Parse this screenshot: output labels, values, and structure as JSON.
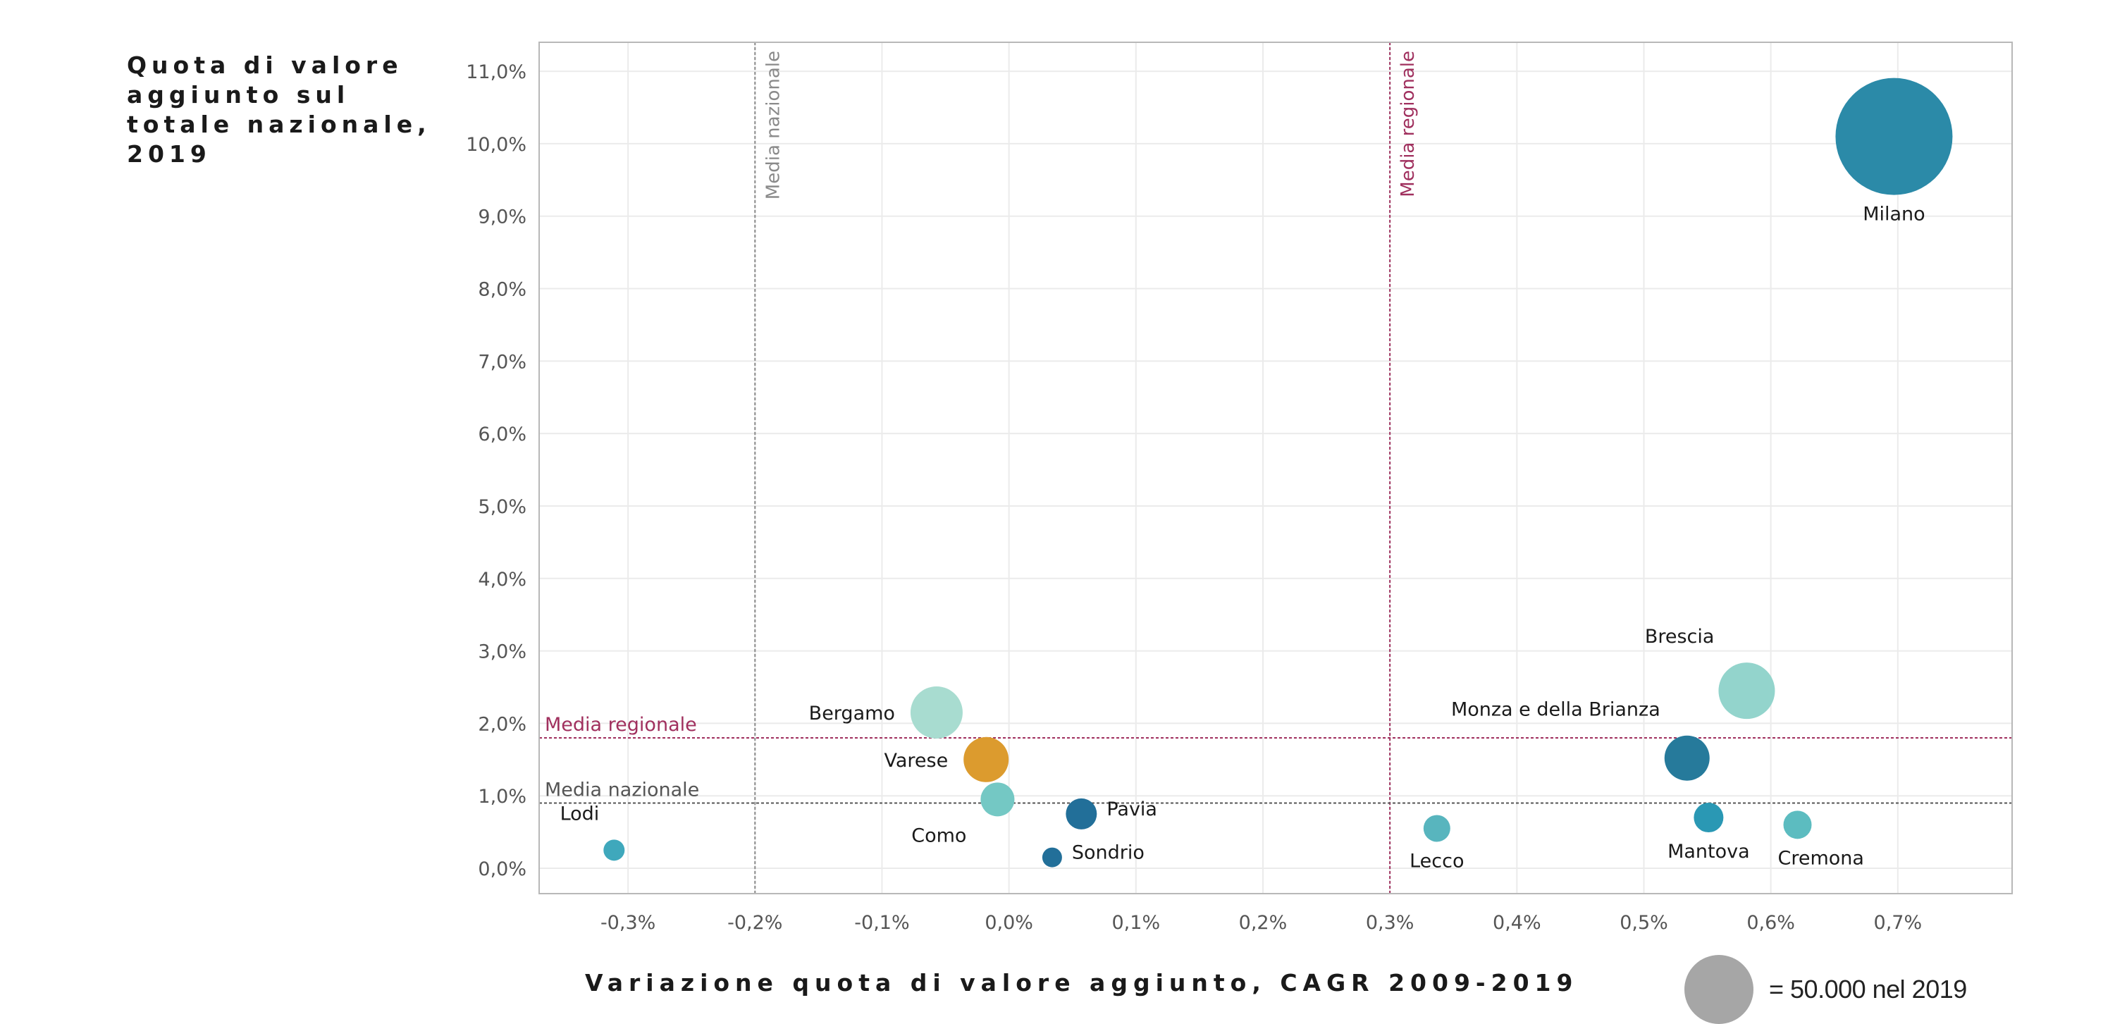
{
  "chart_data": {
    "type": "scatter",
    "xlabel": "Variazione quota di valore aggiunto, CAGR 2009-2019",
    "ylabel": "Quota di valore aggiunto sul totale nazionale, 2019",
    "xlim": [
      -0.37,
      0.79
    ],
    "ylim": [
      -0.35,
      11.4
    ],
    "x_ticks": [
      -0.3,
      -0.2,
      -0.1,
      0.0,
      0.1,
      0.2,
      0.3,
      0.4,
      0.5,
      0.6,
      0.7
    ],
    "x_tick_labels": [
      "-0,3%",
      "-0,2%",
      "-0,1%",
      "0,0%",
      "0,1%",
      "0,2%",
      "0,3%",
      "0,4%",
      "0,5%",
      "0,6%",
      "0,7%"
    ],
    "y_ticks": [
      0,
      1,
      2,
      3,
      4,
      5,
      6,
      7,
      8,
      9,
      10,
      11
    ],
    "y_tick_labels": [
      "0,0%",
      "1,0%",
      "2,0%",
      "3,0%",
      "4,0%",
      "5,0%",
      "6,0%",
      "7,0%",
      "8,0%",
      "9,0%",
      "10,0%",
      "11,0%"
    ],
    "grid": true,
    "size_legend": {
      "label": "= 50.000 nel 2019",
      "color": "#a6a6a6"
    },
    "reference_lines": [
      {
        "axis": "x",
        "value": -0.2,
        "label": "Media nazionale",
        "color": "#8a8a8a"
      },
      {
        "axis": "x",
        "value": 0.3,
        "label": "Media regionale",
        "color": "#a0305e"
      },
      {
        "axis": "y",
        "value": 1.8,
        "label": "Media regionale",
        "color": "#a0305e"
      },
      {
        "axis": "y",
        "value": 0.9,
        "label": "Media nazionale",
        "color": "#555555"
      }
    ],
    "points": [
      {
        "name": "Milano",
        "x": 0.697,
        "y": 10.1,
        "radius": 83,
        "color": "#2b8aa8",
        "label_pos": "below"
      },
      {
        "name": "Brescia",
        "x": 0.581,
        "y": 2.45,
        "radius": 40,
        "color": "#93d4cc",
        "label_pos": "above-left"
      },
      {
        "name": "Bergamo",
        "x": -0.057,
        "y": 2.15,
        "radius": 37,
        "color": "#a8dcd0",
        "label_pos": "left"
      },
      {
        "name": "Monza e della Brianza",
        "x": 0.534,
        "y": 1.52,
        "radius": 32,
        "color": "#267a9b",
        "label_pos": "above-left"
      },
      {
        "name": "Varese",
        "x": -0.018,
        "y": 1.5,
        "radius": 32,
        "color": "#dc9b2e",
        "label_pos": "left"
      },
      {
        "name": "Como",
        "x": -0.009,
        "y": 0.95,
        "radius": 24,
        "color": "#74c8c4",
        "label_pos": "below-left"
      },
      {
        "name": "Pavia",
        "x": 0.057,
        "y": 0.75,
        "radius": 22,
        "color": "#226f99",
        "label_pos": "right"
      },
      {
        "name": "Mantova",
        "x": 0.551,
        "y": 0.7,
        "radius": 21,
        "color": "#2a98b4",
        "label_pos": "below"
      },
      {
        "name": "Cremona",
        "x": 0.621,
        "y": 0.6,
        "radius": 20,
        "color": "#5cbcc0",
        "label_pos": "below-right"
      },
      {
        "name": "Lecco",
        "x": 0.337,
        "y": 0.55,
        "radius": 19,
        "color": "#58b5be",
        "label_pos": "below"
      },
      {
        "name": "Lodi",
        "x": -0.311,
        "y": 0.25,
        "radius": 15,
        "color": "#3fa8bc",
        "label_pos": "above-left"
      },
      {
        "name": "Sondrio",
        "x": 0.034,
        "y": 0.15,
        "radius": 14,
        "color": "#226f99",
        "label_pos": "right"
      }
    ]
  }
}
